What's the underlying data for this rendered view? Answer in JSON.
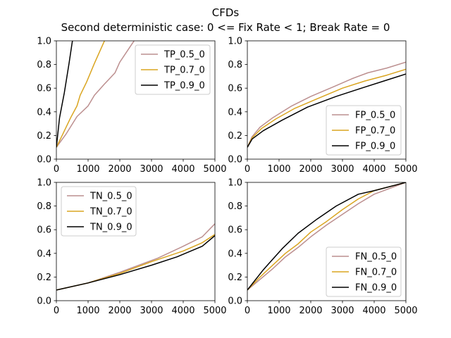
{
  "figure": {
    "title": "CFDs",
    "subtitle": "Second deterministic case: 0 <= Fix Rate < 1; Break Rate = 0"
  },
  "colors": {
    "0.5": "#bc8f8f",
    "0.7": "#daa520",
    "0.9": "#000000"
  },
  "chart_data": [
    {
      "type": "line",
      "panel": "top-left",
      "xlim": [
        0,
        5000
      ],
      "ylim": [
        0,
        1.0
      ],
      "xticks": [
        0,
        1000,
        2000,
        3000,
        4000,
        5000
      ],
      "yticks": [
        0.0,
        0.2,
        0.4,
        0.6,
        0.8,
        1.0
      ],
      "legend_position": "upper right",
      "series": [
        {
          "name": "TP_0.5_0",
          "color_key": "0.5",
          "x": [
            0,
            300,
            650,
            1000,
            1200,
            1500,
            1850,
            2000,
            2250,
            2700
          ],
          "y": [
            0.1,
            0.21,
            0.36,
            0.45,
            0.54,
            0.63,
            0.73,
            0.82,
            0.92,
            1.1
          ]
        },
        {
          "name": "TP_0.7_0",
          "color_key": "0.7",
          "x": [
            0,
            200,
            450,
            650,
            750,
            950,
            1200,
            1500,
            1700
          ],
          "y": [
            0.1,
            0.21,
            0.35,
            0.45,
            0.54,
            0.65,
            0.81,
            0.99,
            1.1
          ]
        },
        {
          "name": "TP_0.9_0",
          "color_key": "0.9",
          "x": [
            0,
            100,
            250,
            400,
            500,
            600
          ],
          "y": [
            0.1,
            0.35,
            0.56,
            0.81,
            0.99,
            1.1
          ]
        }
      ]
    },
    {
      "type": "line",
      "panel": "top-right",
      "xlim": [
        0,
        5000
      ],
      "ylim": [
        0,
        1.0
      ],
      "xticks": [
        0,
        1000,
        2000,
        3000,
        4000,
        5000
      ],
      "yticks": [
        0.0,
        0.2,
        0.4,
        0.6,
        0.8,
        1.0
      ],
      "legend_position": "lower right",
      "series": [
        {
          "name": "FP_0.5_0",
          "color_key": "0.5",
          "x": [
            0,
            150,
            400,
            800,
            1400,
            2000,
            2700,
            3300,
            3800,
            4400,
            5000
          ],
          "y": [
            0.1,
            0.19,
            0.27,
            0.35,
            0.45,
            0.53,
            0.61,
            0.68,
            0.73,
            0.77,
            0.82
          ]
        },
        {
          "name": "FP_0.7_0",
          "color_key": "0.7",
          "x": [
            0,
            150,
            450,
            900,
            1500,
            2200,
            3000,
            3700,
            4400,
            5000
          ],
          "y": [
            0.1,
            0.18,
            0.26,
            0.34,
            0.43,
            0.51,
            0.6,
            0.66,
            0.71,
            0.76
          ]
        },
        {
          "name": "FP_0.9_0",
          "color_key": "0.9",
          "x": [
            0,
            150,
            500,
            1100,
            1900,
            2800,
            3600,
            4300,
            5000
          ],
          "y": [
            0.1,
            0.17,
            0.24,
            0.33,
            0.44,
            0.53,
            0.6,
            0.66,
            0.72
          ]
        }
      ]
    },
    {
      "type": "line",
      "panel": "bottom-left",
      "xlim": [
        0,
        5000
      ],
      "ylim": [
        0,
        1.0
      ],
      "xticks": [
        0,
        1000,
        2000,
        3000,
        4000,
        5000
      ],
      "yticks": [
        0.0,
        0.2,
        0.4,
        0.6,
        0.8,
        1.0
      ],
      "legend_position": "upper left",
      "series": [
        {
          "name": "TN_0.5_0",
          "color_key": "0.5",
          "x": [
            0,
            1000,
            2000,
            3200,
            4000,
            4600,
            5000
          ],
          "y": [
            0.09,
            0.15,
            0.24,
            0.36,
            0.46,
            0.54,
            0.65
          ]
        },
        {
          "name": "TN_0.7_0",
          "color_key": "0.7",
          "x": [
            0,
            1000,
            2000,
            3000,
            4000,
            4600,
            5000
          ],
          "y": [
            0.09,
            0.15,
            0.23,
            0.33,
            0.42,
            0.49,
            0.56
          ]
        },
        {
          "name": "TN_0.9_0",
          "color_key": "0.9",
          "x": [
            0,
            1000,
            2000,
            3000,
            3800,
            4600,
            5000
          ],
          "y": [
            0.09,
            0.15,
            0.22,
            0.3,
            0.37,
            0.46,
            0.55
          ]
        }
      ]
    },
    {
      "type": "line",
      "panel": "bottom-right",
      "xlim": [
        0,
        5000
      ],
      "ylim": [
        0,
        1.0
      ],
      "xticks": [
        0,
        1000,
        2000,
        3000,
        4000,
        5000
      ],
      "yticks": [
        0.0,
        0.2,
        0.4,
        0.6,
        0.8,
        1.0
      ],
      "legend_position": "lower right",
      "series": [
        {
          "name": "FN_0.5_0",
          "color_key": "0.5",
          "x": [
            0,
            400,
            800,
            1200,
            1600,
            2000,
            2500,
            3000,
            3500,
            4000,
            5000
          ],
          "y": [
            0.09,
            0.18,
            0.27,
            0.37,
            0.45,
            0.54,
            0.64,
            0.73,
            0.82,
            0.9,
            1.0
          ]
        },
        {
          "name": "FN_0.7_0",
          "color_key": "0.7",
          "x": [
            0,
            400,
            800,
            1200,
            1600,
            2000,
            2500,
            3000,
            3500,
            4000,
            5000
          ],
          "y": [
            0.09,
            0.2,
            0.3,
            0.4,
            0.48,
            0.58,
            0.67,
            0.77,
            0.86,
            0.93,
            1.0
          ]
        },
        {
          "name": "FN_0.9_0",
          "color_key": "0.9",
          "x": [
            0,
            500,
            1100,
            1600,
            2200,
            2800,
            3500,
            4000,
            5000
          ],
          "y": [
            0.09,
            0.26,
            0.44,
            0.57,
            0.69,
            0.8,
            0.9,
            0.93,
            1.0
          ]
        }
      ]
    }
  ]
}
